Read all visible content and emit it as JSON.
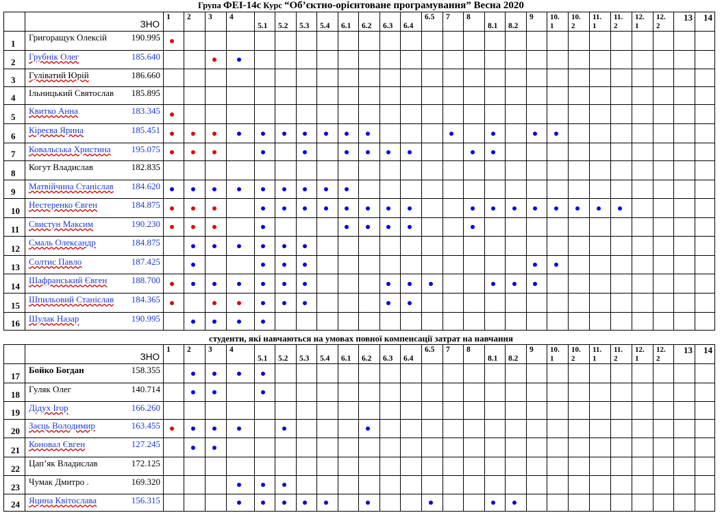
{
  "title": {
    "prefix": "Група",
    "group": "ФЕІ-14с",
    "course_label": "Курс",
    "course": "“Об’єктно-орієнтоване програмування” Весна 2020"
  },
  "zno_label": "ЗНО",
  "section2_title": "студенти, які навчаються на умовах повної компенсації затрат на навчання",
  "colors": {
    "red_dot": "#e00000",
    "blue_dot": "#0000e6",
    "blue_text": "#1a3ad6"
  },
  "legend_note": "red dot and blue dot markers",
  "columns": [
    {
      "top": "1",
      "bottom": ""
    },
    {
      "top": "2",
      "bottom": ""
    },
    {
      "top": "3",
      "bottom": ""
    },
    {
      "top": "4",
      "bottom": ""
    },
    {
      "top": "",
      "bottom": "5.1"
    },
    {
      "top": "",
      "bottom": "5.2"
    },
    {
      "top": "",
      "bottom": "5.3"
    },
    {
      "top": "",
      "bottom": "5.4"
    },
    {
      "top": "",
      "bottom": "6.1"
    },
    {
      "top": "",
      "bottom": "6.2"
    },
    {
      "top": "",
      "bottom": "6.3"
    },
    {
      "top": "",
      "bottom": "6.4"
    },
    {
      "top": "6.5",
      "bottom": ""
    },
    {
      "top": "7",
      "bottom": ""
    },
    {
      "top": "8",
      "bottom": ""
    },
    {
      "top": "",
      "bottom": "8.1"
    },
    {
      "top": "",
      "bottom": "8.2"
    },
    {
      "top": "9",
      "bottom": ""
    },
    {
      "top": "10.\n1",
      "bottom": ""
    },
    {
      "top": "10.\n2",
      "bottom": ""
    },
    {
      "top": "11.\n1",
      "bottom": ""
    },
    {
      "top": "11.\n2",
      "bottom": ""
    },
    {
      "top": "12.\n1",
      "bottom": ""
    },
    {
      "top": "12.\n2",
      "bottom": ""
    },
    {
      "top": "13",
      "bottom": ""
    },
    {
      "top": "14",
      "bottom": ""
    }
  ],
  "students_budget": [
    {
      "num": "1",
      "name": "Григоращук Олексій",
      "score": "190.995",
      "style": "plain",
      "marks": {
        "0": "r"
      }
    },
    {
      "num": "2",
      "name": "Грубнік Олег",
      "score": "185.640",
      "style": "blue",
      "marks": {
        "2": "r",
        "3": "b"
      }
    },
    {
      "num": "3",
      "name": "Гуліватий Юрій",
      "score": "186.660",
      "style": "ul",
      "marks": {}
    },
    {
      "num": "4",
      "name": "Ільницький Святослав",
      "score": "185.895",
      "style": "plain",
      "marks": {}
    },
    {
      "num": "5",
      "name": "Квитко Анна",
      "score": "183.345",
      "style": "blue",
      "marks": {
        "0": "r"
      }
    },
    {
      "num": "6",
      "name": "Кіреєва Ярина",
      "score": "185.451",
      "style": "blue",
      "marks": {
        "0": "r",
        "1": "r",
        "2": "r",
        "3": "b",
        "4": "b",
        "5": "b",
        "6": "b",
        "7": "b",
        "8": "b",
        "9": "b",
        "13": "b",
        "15": "b",
        "17": "b",
        "18": "b"
      }
    },
    {
      "num": "7",
      "name": "Ковальська Христина",
      "score": "195.075",
      "style": "blue",
      "marks": {
        "0": "r",
        "1": "r",
        "2": "r",
        "4": "b",
        "6": "b",
        "8": "b",
        "9": "b",
        "10": "b",
        "11": "b",
        "14": "b",
        "15": "b"
      }
    },
    {
      "num": "8",
      "name": "Когут Владислав",
      "score": "182.835",
      "style": "plain",
      "marks": {}
    },
    {
      "num": "9",
      "name": "Матвійчина Станіслав",
      "score": "184.620",
      "style": "blue",
      "marks": {
        "0": "b",
        "1": "b",
        "2": "b",
        "3": "b",
        "4": "b",
        "5": "b",
        "6": "b",
        "7": "b",
        "8": "b"
      }
    },
    {
      "num": "10",
      "name": "Нестеренко Євген",
      "score": "184.875",
      "style": "blue",
      "marks": {
        "0": "r",
        "1": "r",
        "2": "r",
        "4": "b",
        "5": "b",
        "6": "b",
        "7": "b",
        "8": "b",
        "9": "b",
        "10": "b",
        "11": "b",
        "14": "b",
        "15": "b",
        "16": "b",
        "17": "b",
        "18": "b",
        "19": "b",
        "20": "b",
        "21": "b"
      }
    },
    {
      "num": "11",
      "name": "Свистун Максим",
      "score": "190.230",
      "style": "blue",
      "marks": {
        "0": "r",
        "1": "r",
        "2": "r",
        "4": "b",
        "8": "b",
        "9": "b",
        "10": "b",
        "11": "b",
        "14": "b"
      }
    },
    {
      "num": "12",
      "name": "Смаль Олександр",
      "score": "184.875",
      "style": "blue",
      "marks": {
        "1": "b",
        "2": "b",
        "3": "b",
        "4": "b",
        "5": "b",
        "6": "b"
      }
    },
    {
      "num": "13",
      "name": "Солтис Павло",
      "score": "187.425",
      "style": "blue",
      "marks": {
        "1": "b",
        "4": "b",
        "5": "b",
        "6": "b",
        "17": "b",
        "18": "b"
      }
    },
    {
      "num": "14",
      "name": "Шафранський Євген",
      "score": "188.700",
      "style": "blue",
      "marks": {
        "0": "r",
        "1": "b",
        "2": "b",
        "3": "b",
        "4": "b",
        "5": "b",
        "6": "b",
        "10": "b",
        "11": "b",
        "12": "b",
        "15": "b",
        "16": "b",
        "17": "b"
      }
    },
    {
      "num": "15",
      "name": "Шпильовий Станіслав",
      "score": "184.365",
      "style": "blue",
      "marks": {
        "0": "r",
        "2": "r",
        "3": "r",
        "4": "b",
        "5": "b",
        "6": "b",
        "10": "b",
        "11": "b"
      }
    },
    {
      "num": "16",
      "name": "Шулак Назар",
      "score": "190.995",
      "style": "blue",
      "marks": {
        "1": "b",
        "2": "b",
        "3": "b",
        "4": "b"
      }
    }
  ],
  "students_contract": [
    {
      "num": "17",
      "name": "Бойко Богдан",
      "score": "158.355",
      "style": "bold",
      "marks": {
        "1": "b",
        "2": "b",
        "3": "b",
        "4": "b"
      }
    },
    {
      "num": "18",
      "name": "Гуляк Олег",
      "score": "140.714",
      "style": "plain",
      "marks": {
        "1": "b",
        "2": "b",
        "4": "b"
      }
    },
    {
      "num": "19",
      "name": "Дідух Ігор",
      "score": "166.260",
      "style": "blue",
      "marks": {}
    },
    {
      "num": "20",
      "name": "Заєць Володимир",
      "score": "163.455",
      "style": "blue",
      "marks": {
        "0": "r",
        "1": "b",
        "2": "b",
        "3": "b",
        "5": "b",
        "9": "b"
      }
    },
    {
      "num": "21",
      "name": "Коновал Євген",
      "score": "127.245",
      "style": "blue",
      "marks": {
        "1": "b",
        "2": "b"
      }
    },
    {
      "num": "22",
      "name": "Цап’як Владислав",
      "score": "172.125",
      "style": "plain",
      "marks": {}
    },
    {
      "num": "23",
      "name": "Чумак Дмитро .",
      "score": "169.320",
      "style": "plain",
      "marks": {
        "3": "b",
        "4": "b",
        "5": "b"
      }
    },
    {
      "num": "24",
      "name": "Яцина Квітослава",
      "score": "156.315",
      "style": "blue",
      "marks": {
        "3": "b",
        "4": "b",
        "5": "b",
        "6": "b",
        "7": "b",
        "9": "b",
        "12": "b",
        "15": "b",
        "16": "b"
      }
    }
  ]
}
